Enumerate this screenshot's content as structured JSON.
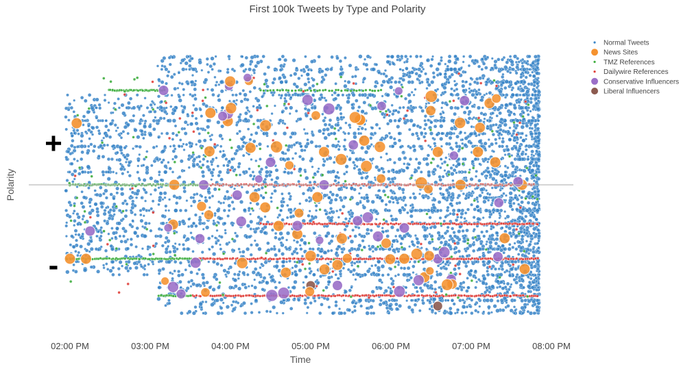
{
  "chart_data": {
    "type": "scatter",
    "title": "First 100k Tweets by Type and Polarity",
    "xlabel": "Time",
    "ylabel": "Polarity",
    "x_ticks": [
      "02:00 PM",
      "03:00 PM",
      "04:00 PM",
      "05:00 PM",
      "06:00 PM",
      "07:00 PM",
      "08:00 PM"
    ],
    "y_annotations": {
      "positive": "+",
      "negative": "-"
    },
    "xlim": [
      "01:45 PM",
      "08:00 PM"
    ],
    "ylim": [
      -1,
      1
    ],
    "zero_line": true,
    "grid": false,
    "legend_position": "top-right",
    "series": [
      {
        "name": "Normal Tweets",
        "color": "#3a86c8",
        "marker": "small-dot"
      },
      {
        "name": "News Sites",
        "color": "#f5922f",
        "marker": "large-circle"
      },
      {
        "name": "TMZ References",
        "color": "#3fae3f",
        "marker": "small-dot"
      },
      {
        "name": "Dailywire References",
        "color": "#e0403a",
        "marker": "small-dot"
      },
      {
        "name": "Conservative Influencers",
        "color": "#9b6fc8",
        "marker": "large-circle"
      },
      {
        "name": "Liberal Influencers",
        "color": "#8c5a4f",
        "marker": "large-circle"
      }
    ],
    "notable_points": {
      "News Sites": [
        [
          "02:05 PM",
          0.6
        ],
        [
          "02:00 PM",
          -0.72
        ],
        [
          "02:12 PM",
          -0.72
        ],
        [
          "03:18 PM",
          0.0
        ],
        [
          "03:45 PM",
          0.7
        ],
        [
          "03:58 PM",
          0.62
        ],
        [
          "04:15 PM",
          0.36
        ],
        [
          "04:18 PM",
          -0.12
        ],
        [
          "04:26 PM",
          -0.22
        ],
        [
          "04:36 PM",
          -0.4
        ],
        [
          "04:50 PM",
          -0.48
        ],
        [
          "05:05 PM",
          -0.12
        ],
        [
          "05:10 PM",
          0.32
        ],
        [
          "05:20 PM",
          -0.78
        ],
        [
          "05:40 PM",
          0.43
        ],
        [
          "06:10 PM",
          -0.72
        ],
        [
          "06:35 PM",
          0.32
        ],
        [
          "06:52 PM",
          0.0
        ],
        [
          "07:05 PM",
          0.32
        ],
        [
          "07:25 PM",
          -0.52
        ],
        [
          "07:38 PM",
          0.0
        ],
        [
          "07:40 PM",
          -0.82
        ],
        [
          "07:18 PM",
          0.22
        ],
        [
          "06:25 PM",
          -0.9
        ]
      ],
      "Conservative Influencers": [
        [
          "02:15 PM",
          -0.45
        ],
        [
          "03:10 PM",
          0.92
        ],
        [
          "03:40 PM",
          0.0
        ],
        [
          "04:05 PM",
          -0.1
        ],
        [
          "04:30 PM",
          0.22
        ],
        [
          "05:10 PM",
          0.0
        ],
        [
          "05:20 PM",
          -0.98
        ],
        [
          "05:35 PM",
          -0.35
        ],
        [
          "06:10 PM",
          -0.42
        ],
        [
          "06:35 PM",
          -0.72
        ],
        [
          "06:45 PM",
          -0.92
        ],
        [
          "06:55 PM",
          0.82
        ],
        [
          "07:20 PM",
          -0.7
        ],
        [
          "07:35 PM",
          0.03
        ]
      ],
      "Liberal Influencers": [
        [
          "05:00 PM",
          -0.98
        ],
        [
          "06:35 PM",
          -1.18
        ]
      ]
    }
  },
  "legend_title": ""
}
